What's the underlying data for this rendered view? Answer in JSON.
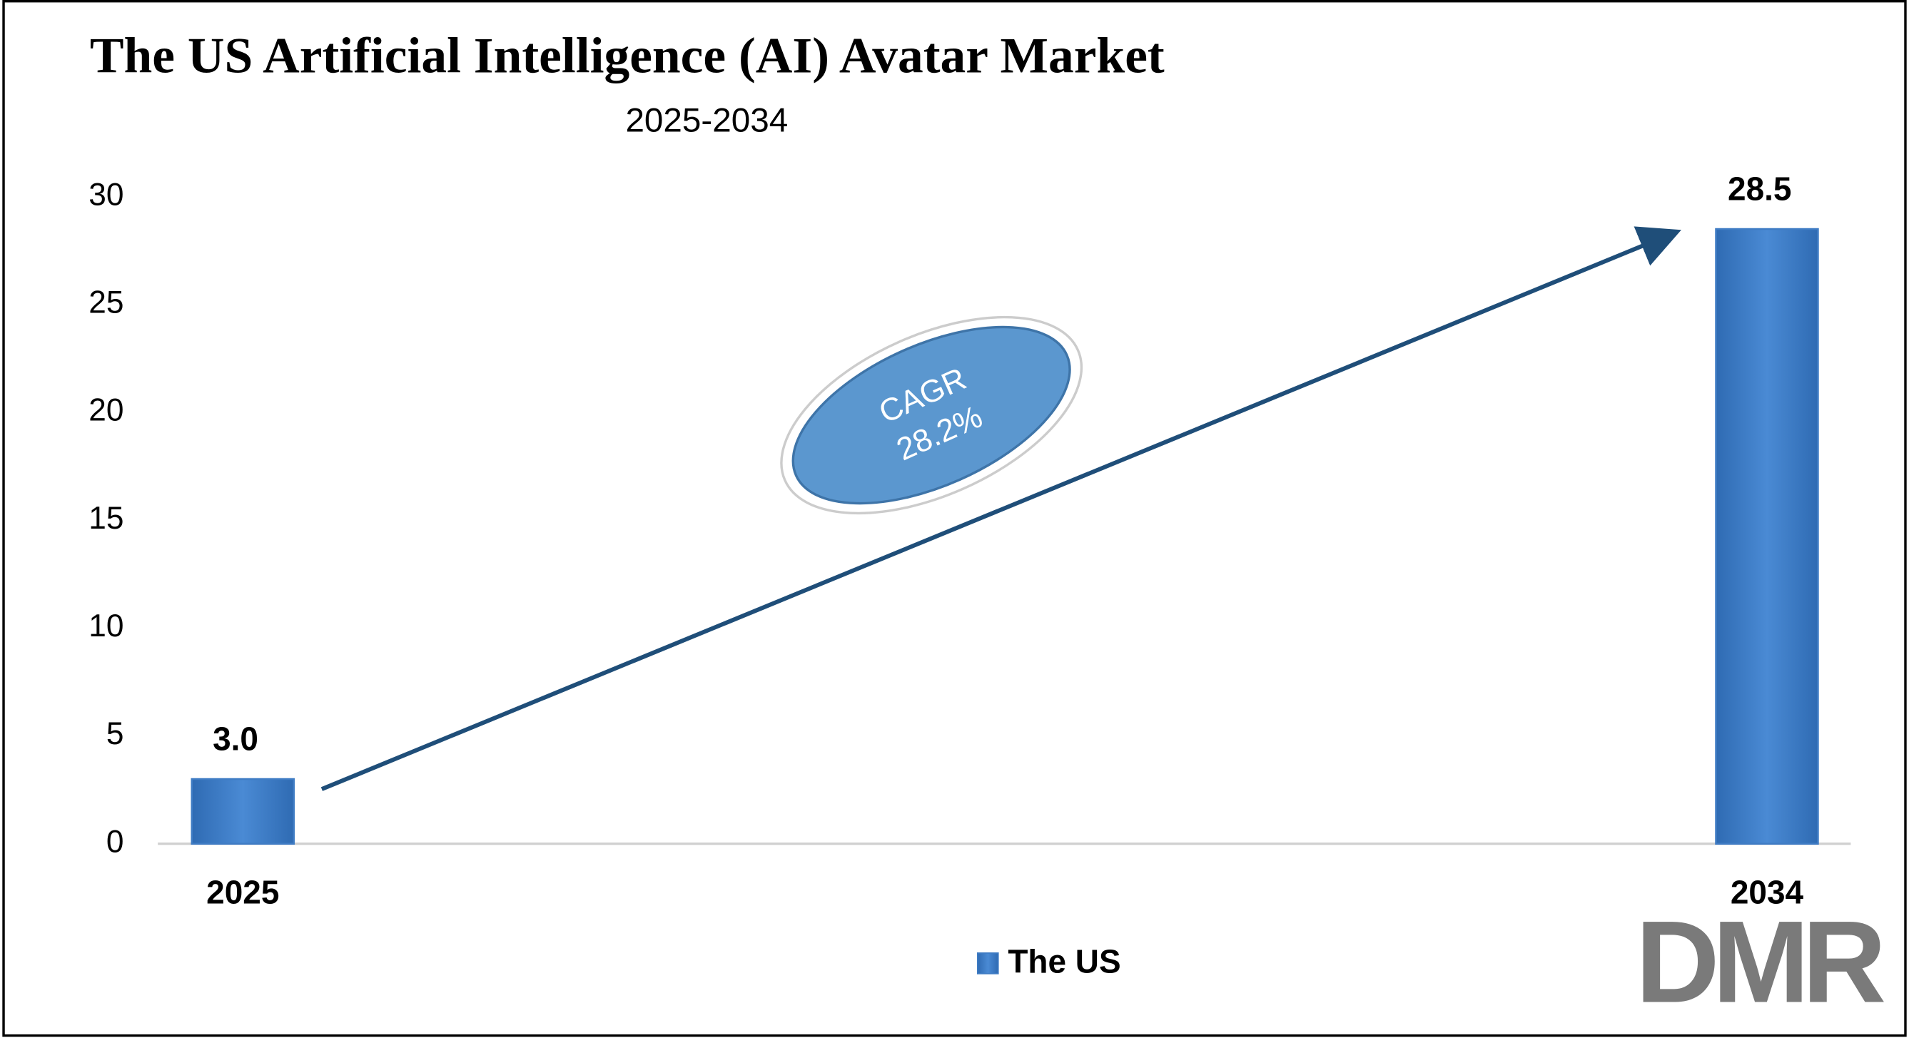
{
  "chart_data": {
    "type": "bar",
    "title": "The US Artificial Intelligence (AI) Avatar Market",
    "subtitle": "2025-2034",
    "categories": [
      "2025",
      "2034"
    ],
    "series": [
      {
        "name": "The US",
        "color": "#3f7cc4",
        "values": [
          3.0,
          28.5
        ],
        "value_labels": [
          "3.0",
          "28.5"
        ]
      }
    ],
    "ylim": [
      0,
      30
    ],
    "yticks": [
      0,
      5,
      10,
      15,
      20,
      25,
      30
    ],
    "grid": false,
    "legend": "bottom",
    "annotation": [
      "CAGR",
      "28.2%"
    ],
    "logo": "DMR"
  }
}
